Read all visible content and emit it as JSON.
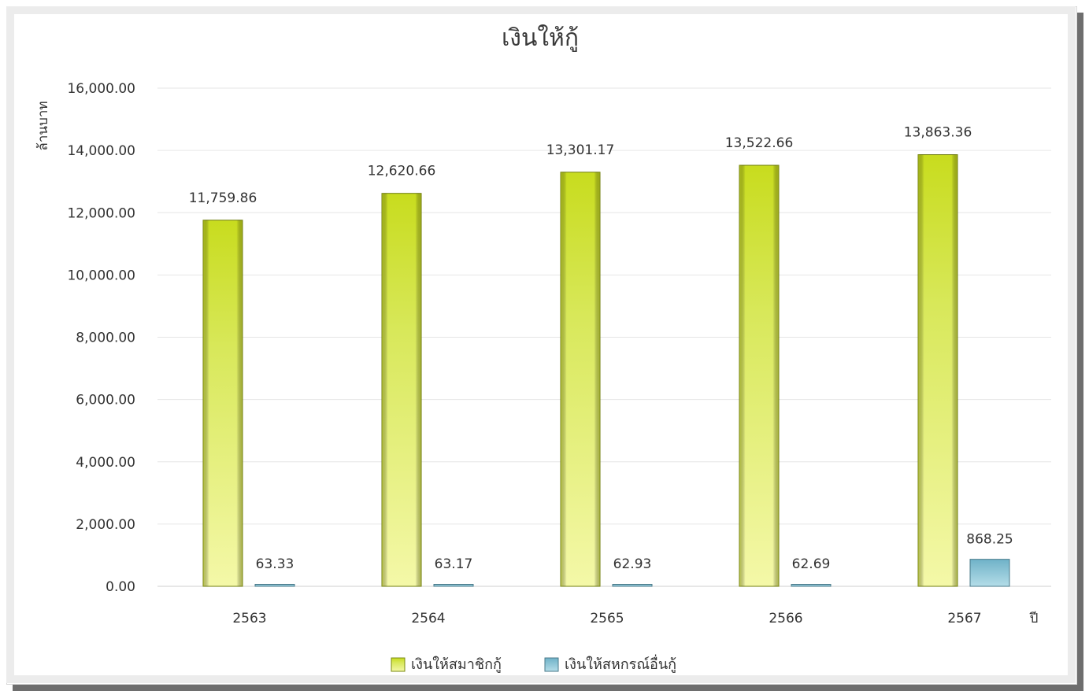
{
  "chart_data": {
    "type": "bar",
    "title": "เงินให้กู้",
    "ylabel": "ล้านบาท",
    "xlabel": "ปี",
    "ylim": [
      0,
      16000
    ],
    "yticks": [
      "0.00",
      "2,000.00",
      "4,000.00",
      "6,000.00",
      "8,000.00",
      "10,000.00",
      "12,000.00",
      "14,000.00",
      "16,000.00"
    ],
    "categories": [
      "2563",
      "2564",
      "2565",
      "2566",
      "2567"
    ],
    "grid": true,
    "legend_position": "bottom",
    "series": [
      {
        "name": "เงินให้สมาชิกกู้",
        "color": "#d4e63a",
        "values": [
          11759.86,
          12620.66,
          13301.17,
          13522.66,
          13863.36
        ],
        "labels": [
          "11,759.86",
          "12,620.66",
          "13,301.17",
          "13,522.66",
          "13,863.36"
        ]
      },
      {
        "name": "เงินให้สหกรณ์อื่นกู้",
        "color": "#8ec8d8",
        "values": [
          63.33,
          63.17,
          62.93,
          62.69,
          868.25
        ],
        "labels": [
          "63.33",
          "63.17",
          "62.93",
          "62.69",
          "868.25"
        ]
      }
    ]
  }
}
